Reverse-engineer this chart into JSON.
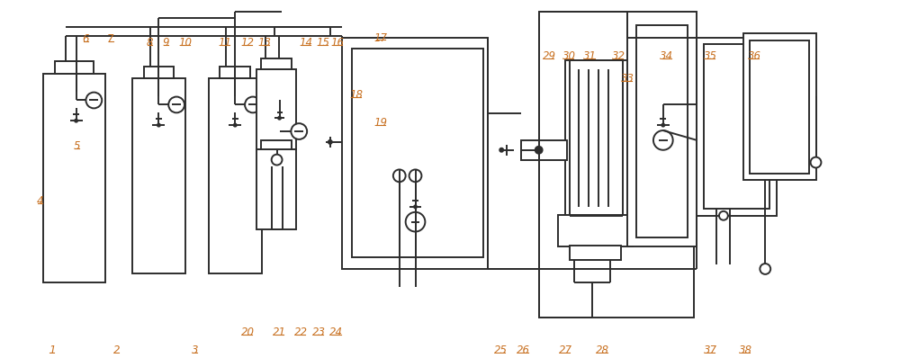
{
  "bg": "#ffffff",
  "lc": "#2d2d2d",
  "lw": 1.4,
  "lfs": 8.5,
  "lcol": "#c87020"
}
